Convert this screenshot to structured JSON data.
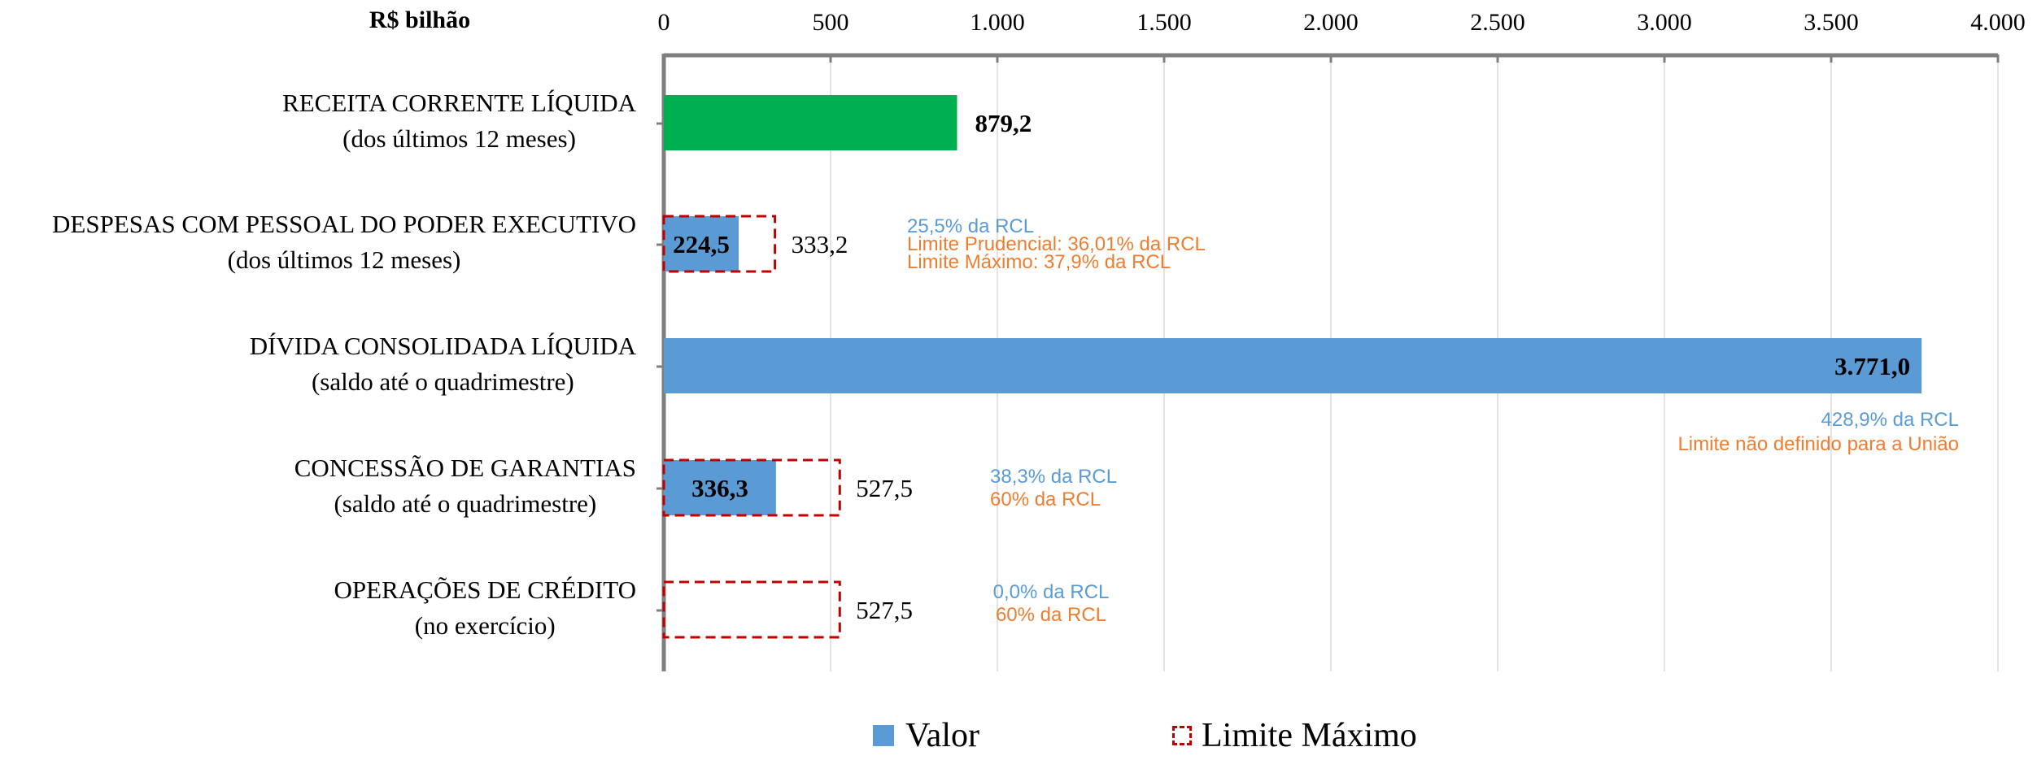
{
  "chart_data": {
    "type": "bar",
    "orientation": "horizontal",
    "unit_label": "R$ bilhão",
    "xlim": [
      0,
      4000
    ],
    "x_ticks": [
      0,
      500,
      1000,
      1500,
      2000,
      2500,
      3000,
      3500,
      4000
    ],
    "x_tick_labels": [
      "0",
      "500",
      "1.000",
      "1.500",
      "2.000",
      "2.500",
      "3.000",
      "3.500",
      "4.000"
    ],
    "grid": true,
    "legend_position": "bottom",
    "legend": [
      {
        "name": "Valor",
        "color": "#5B9BD5",
        "style": "solid"
      },
      {
        "name": "Limite Máximo",
        "color": "#C00000",
        "style": "dashed"
      }
    ],
    "categories": [
      {
        "line1": "RECEITA CORRENTE LÍQUIDA",
        "line2": "(dos últimos 12 meses)",
        "value": 879.2,
        "value_label": "879,2",
        "value_label_position": "outside",
        "bar_color": "#00B050",
        "limit": null,
        "limit_label": "",
        "notes": []
      },
      {
        "line1": "DESPESAS COM PESSOAL DO PODER EXECUTIVO",
        "line2": "(dos últimos 12 meses)",
        "value": 224.5,
        "value_label": "224,5",
        "value_label_position": "inside",
        "bar_color": "#5B9BD5",
        "limit": 333.2,
        "limit_label": "333,2",
        "notes": [
          {
            "text": "25,5% da RCL",
            "color": "#5B9BD5"
          },
          {
            "text": "Limite Prudencial: 36,01% da RCL",
            "color": "#ED7D31"
          },
          {
            "text": "Limite Máximo: 37,9% da RCL",
            "color": "#ED7D31"
          }
        ]
      },
      {
        "line1": "DÍVIDA CONSOLIDADA LÍQUIDA",
        "line2": "(saldo até o quadrimestre)",
        "value": 3771.0,
        "value_label": "3.771,0",
        "value_label_position": "inside-end",
        "bar_color": "#5B9BD5",
        "limit": null,
        "limit_label": "",
        "notes": [
          {
            "text": "428,9% da RCL",
            "color": "#5B9BD5"
          },
          {
            "text": "Limite não definido para a União",
            "color": "#ED7D31"
          }
        ]
      },
      {
        "line1": "CONCESSÃO DE GARANTIAS",
        "line2": "(saldo até o quadrimestre)",
        "value": 336.3,
        "value_label": "336,3",
        "value_label_position": "inside",
        "bar_color": "#5B9BD5",
        "limit": 527.5,
        "limit_label": "527,5",
        "notes": [
          {
            "text": "38,3% da RCL",
            "color": "#5B9BD5"
          },
          {
            "text": "60% da RCL",
            "color": "#ED7D31"
          }
        ]
      },
      {
        "line1": "OPERAÇÕES DE CRÉDITO",
        "line2": "(no exercício)",
        "value": 0,
        "value_label": "",
        "value_label_position": "none",
        "bar_color": "#5B9BD5",
        "limit": 527.5,
        "limit_label": "527,5",
        "notes": [
          {
            "text": "0,0% da RCL",
            "color": "#5B9BD5"
          },
          {
            "text": "60% da RCL",
            "color": "#ED7D31"
          }
        ]
      }
    ]
  }
}
